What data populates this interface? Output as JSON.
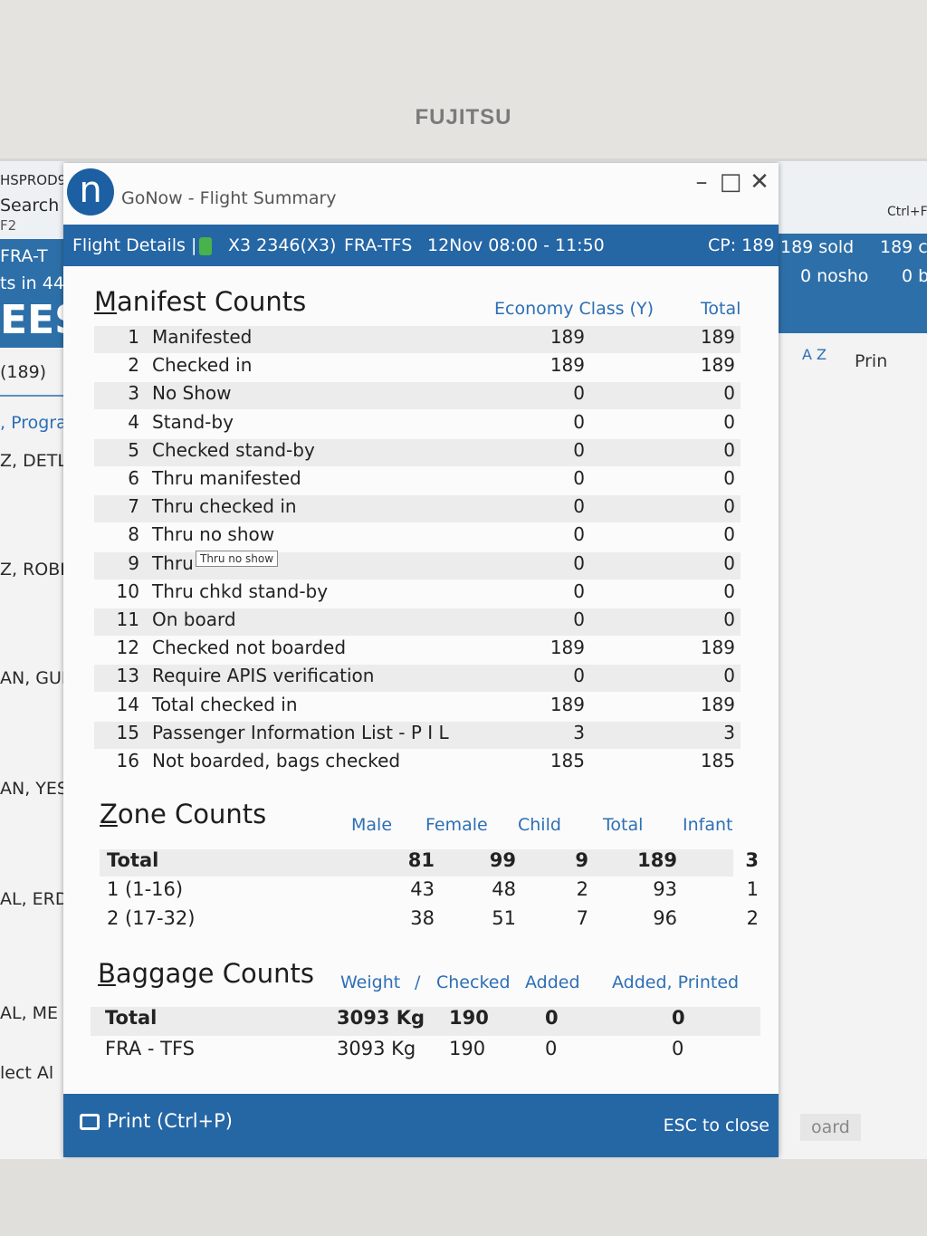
{
  "monitor": {
    "brand": "FUJITSU"
  },
  "background_app": {
    "left_fragments": [
      "HSPROD9",
      "Search",
      "F2",
      "FRA-T",
      "ts in 44",
      "EES",
      "(189)",
      ", Progra",
      "Z, DETL",
      "Z, ROBI",
      "AN, GUE",
      "AN, YES",
      "AL, ERD",
      "AL, ME",
      "lect Al"
    ],
    "right_fragments": {
      "sold": "189 sold",
      "c": "189 c",
      "noshow": "0 nosho",
      "b": "0 b",
      "ctrl": "Ctrl+F",
      "az": "A Z",
      "print": "Prin",
      "board": "oard"
    }
  },
  "dialog": {
    "title": "GoNow - Flight Summary",
    "logo_letter": "n",
    "header": {
      "label": "Flight Details |",
      "flight": "X3 2346(X3)",
      "route": "FRA-TFS",
      "date_time": "12Nov 08:00 - 11:50",
      "cp": "CP: 189"
    },
    "manifest": {
      "title": "Manifest Counts",
      "col_economy": "Economy Class (Y)",
      "col_total": "Total",
      "rows": [
        {
          "num": "1",
          "label": "Manifested",
          "economy": "189",
          "total": "189"
        },
        {
          "num": "2",
          "label": "Checked in",
          "economy": "189",
          "total": "189"
        },
        {
          "num": "3",
          "label": "No Show",
          "economy": "0",
          "total": "0"
        },
        {
          "num": "4",
          "label": "Stand-by",
          "economy": "0",
          "total": "0"
        },
        {
          "num": "5",
          "label": "Checked stand-by",
          "economy": "0",
          "total": "0"
        },
        {
          "num": "6",
          "label": "Thru manifested",
          "economy": "0",
          "total": "0"
        },
        {
          "num": "7",
          "label": "Thru checked in",
          "economy": "0",
          "total": "0"
        },
        {
          "num": "8",
          "label": "Thru no show",
          "economy": "0",
          "total": "0"
        },
        {
          "num": "9",
          "label": "Thru",
          "economy": "0",
          "total": "0"
        },
        {
          "num": "10",
          "label": "Thru chkd stand-by",
          "economy": "0",
          "total": "0"
        },
        {
          "num": "11",
          "label": "On board",
          "economy": "0",
          "total": "0"
        },
        {
          "num": "12",
          "label": "Checked not boarded",
          "economy": "189",
          "total": "189"
        },
        {
          "num": "13",
          "label": "Require APIS verification",
          "economy": "0",
          "total": "0"
        },
        {
          "num": "14",
          "label": "Total checked in",
          "economy": "189",
          "total": "189"
        },
        {
          "num": "15",
          "label": "Passenger Information List - P I L",
          "economy": "3",
          "total": "3"
        },
        {
          "num": "16",
          "label": "Not boarded, bags checked",
          "economy": "185",
          "total": "185"
        }
      ],
      "tooltip": "Thru no show"
    },
    "zone": {
      "title": "Zone Counts",
      "headers": {
        "male": "Male",
        "female": "Female",
        "child": "Child",
        "total": "Total",
        "infant": "Infant"
      },
      "rows": [
        {
          "label": "Total",
          "male": "81",
          "female": "99",
          "child": "9",
          "total": "189",
          "infant": "3"
        },
        {
          "label": "1 (1-16)",
          "male": "43",
          "female": "48",
          "child": "2",
          "total": "93",
          "infant": "1"
        },
        {
          "label": "2 (17-32)",
          "male": "38",
          "female": "51",
          "child": "7",
          "total": "96",
          "infant": "2"
        }
      ]
    },
    "baggage": {
      "title": "Baggage Counts",
      "headers": {
        "weight": "Weight",
        "sep": "/",
        "checked": "Checked",
        "added": "Added",
        "added_printed": "Added, Printed"
      },
      "rows": [
        {
          "label": "Total",
          "weight": "3093 Kg",
          "checked": "190",
          "added": "0",
          "added_printed": "0"
        },
        {
          "label": "FRA - TFS",
          "weight": "3093 Kg",
          "checked": "190",
          "added": "0",
          "added_printed": "0"
        }
      ]
    },
    "footer": {
      "print_label": "Print (Ctrl+P)",
      "esc_label": "ESC to close"
    }
  }
}
